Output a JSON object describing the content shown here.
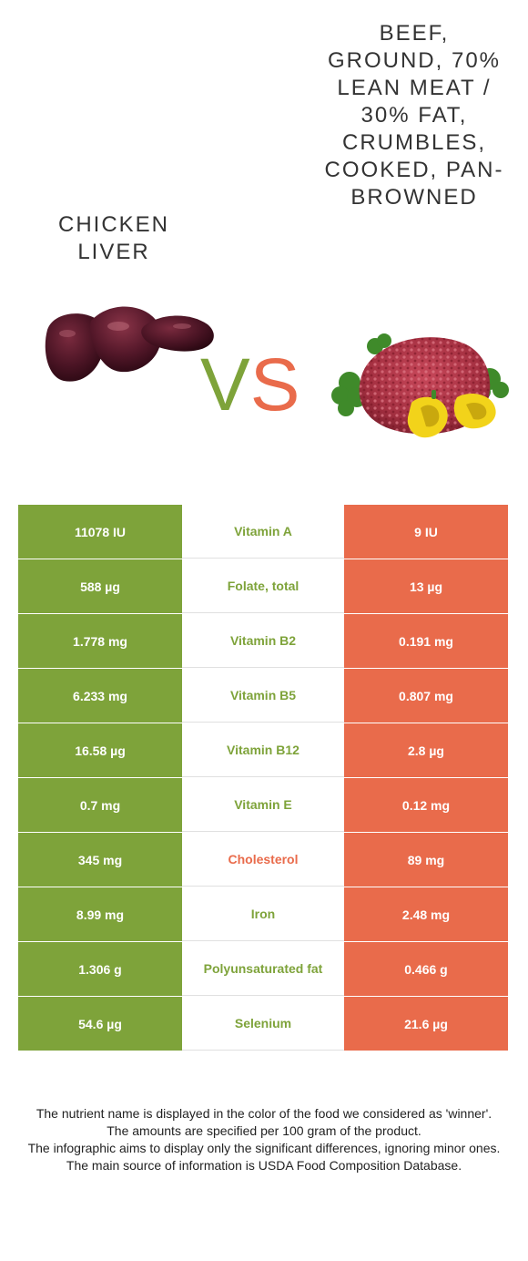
{
  "foods": {
    "left_name": "Chicken liver",
    "right_name": "Beef, ground, 70% lean meat / 30% fat, crumbles, cooked, pan-browned"
  },
  "vs": {
    "v": "V",
    "s": "S"
  },
  "colors": {
    "left": "#7ea33a",
    "right": "#e96b4b"
  },
  "rows": [
    {
      "left": "11078 IU",
      "nutrient": "Vitamin A",
      "right": "9 IU",
      "winner": "left"
    },
    {
      "left": "588 µg",
      "nutrient": "Folate, total",
      "right": "13 µg",
      "winner": "left"
    },
    {
      "left": "1.778 mg",
      "nutrient": "Vitamin B2",
      "right": "0.191 mg",
      "winner": "left"
    },
    {
      "left": "6.233 mg",
      "nutrient": "Vitamin B5",
      "right": "0.807 mg",
      "winner": "left"
    },
    {
      "left": "16.58 µg",
      "nutrient": "Vitamin B12",
      "right": "2.8 µg",
      "winner": "left"
    },
    {
      "left": "0.7 mg",
      "nutrient": "Vitamin E",
      "right": "0.12 mg",
      "winner": "left"
    },
    {
      "left": "345 mg",
      "nutrient": "Cholesterol",
      "right": "89 mg",
      "winner": "right"
    },
    {
      "left": "8.99 mg",
      "nutrient": "Iron",
      "right": "2.48 mg",
      "winner": "left"
    },
    {
      "left": "1.306 g",
      "nutrient": "Polyunsaturated fat",
      "right": "0.466 g",
      "winner": "left"
    },
    {
      "left": "54.6 µg",
      "nutrient": "Selenium",
      "right": "21.6 µg",
      "winner": "left"
    }
  ],
  "footer": {
    "line1": "The nutrient name is displayed in the color of the food we considered as 'winner'.",
    "line2": "The amounts are specified per 100 gram of the product.",
    "line3": "The infographic aims to display only the significant differences, ignoring minor ones.",
    "line4": "The main source of information is USDA Food Composition Database."
  }
}
